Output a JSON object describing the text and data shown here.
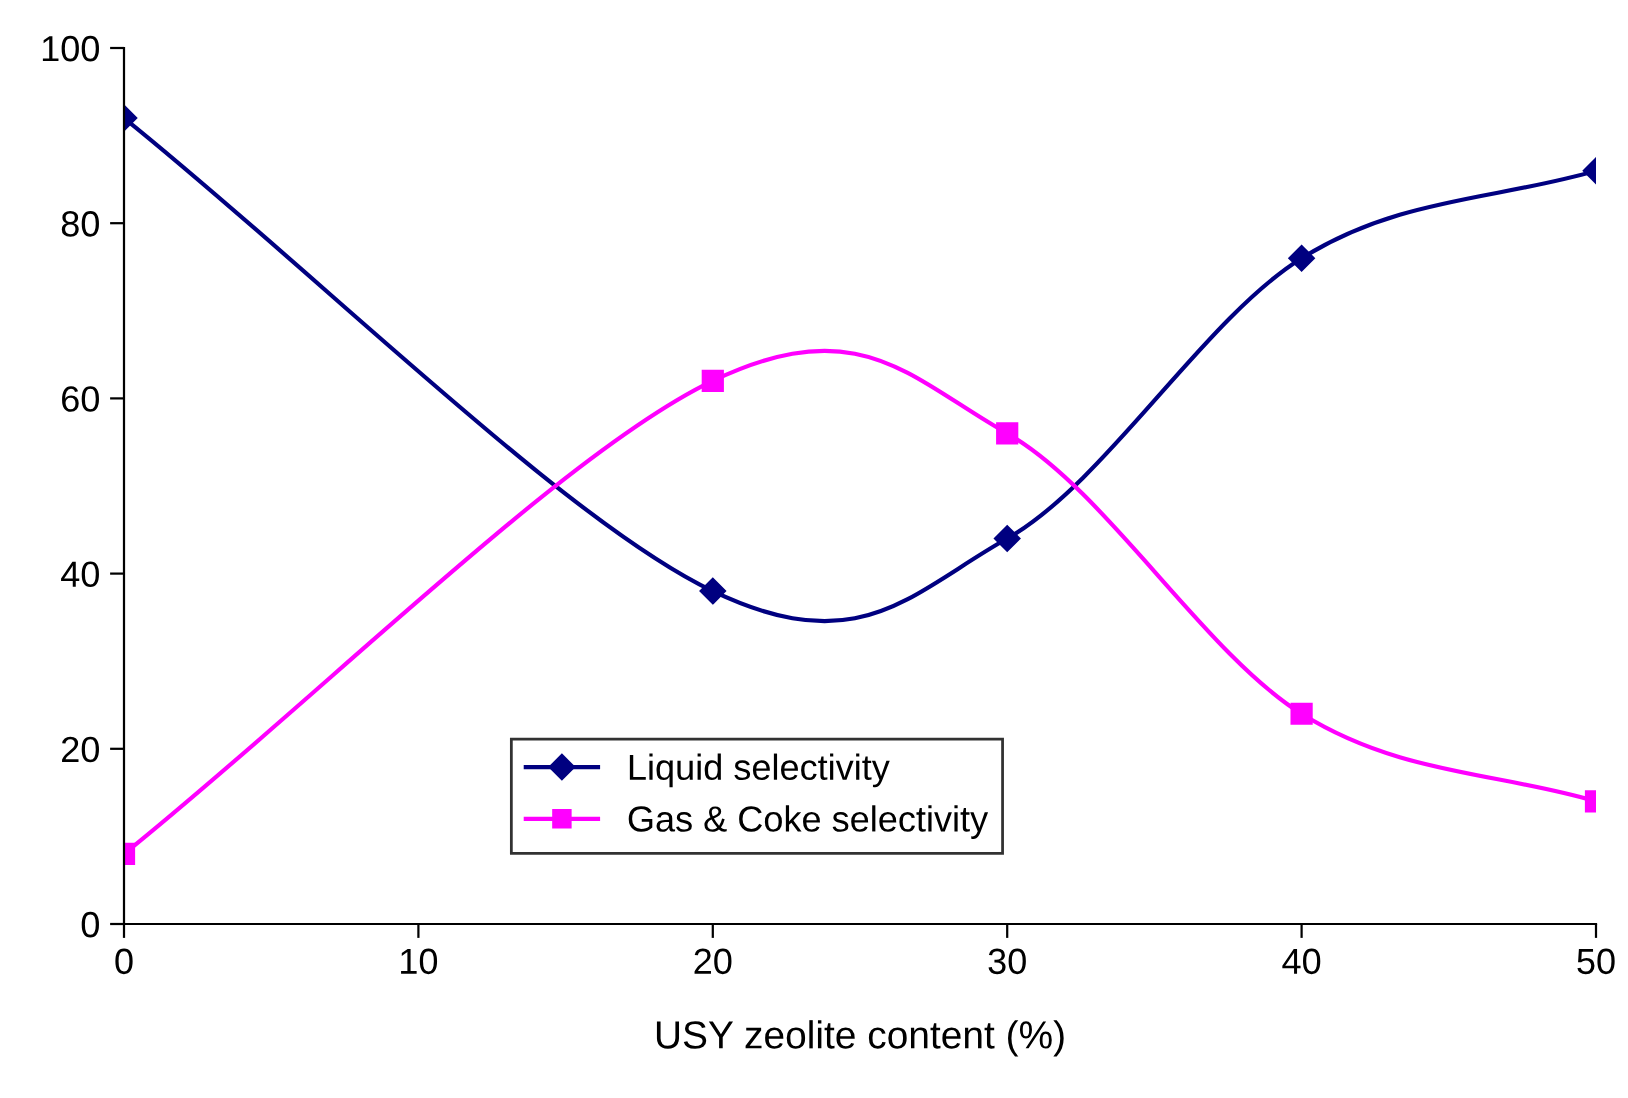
{
  "chart_data": {
    "type": "line",
    "xlabel": "USY zeolite content (%)",
    "x": [
      0,
      20,
      30,
      40,
      50
    ],
    "series": [
      {
        "name": "Liquid selectivity",
        "color": "#000080",
        "marker": "diamond",
        "values": [
          92,
          38,
          44,
          76,
          86
        ]
      },
      {
        "name": "Gas & Coke selectivity",
        "color": "#ff00ff",
        "marker": "square",
        "values": [
          8,
          62,
          56,
          24,
          14
        ]
      }
    ],
    "xlim": [
      0,
      50
    ],
    "xticks": [
      0,
      10,
      20,
      30,
      40,
      50
    ],
    "ylim": [
      0,
      100
    ],
    "yticks": [
      0,
      20,
      40,
      60,
      80,
      100
    ],
    "grid": false,
    "legend": "bottom",
    "line_style": "solid"
  }
}
